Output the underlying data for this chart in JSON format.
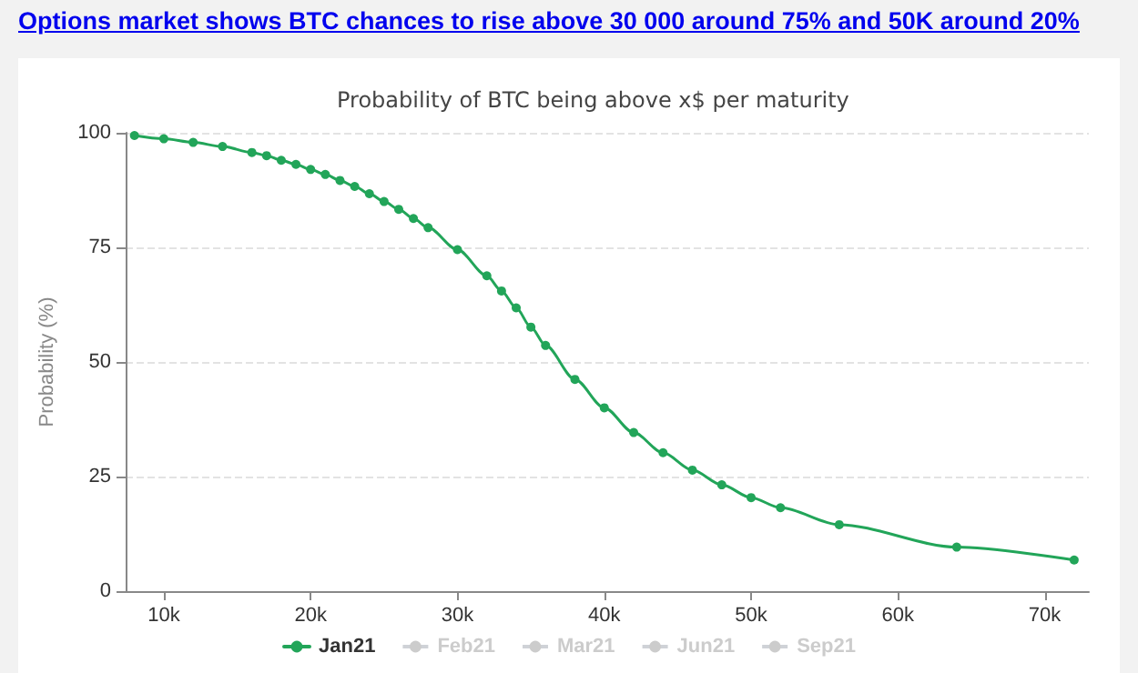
{
  "chart_data": {
    "type": "line",
    "title": "Probability of BTC being above x$ per maturity",
    "annotations": [
      "Options market shows BTC chances to rise above 30 000 around 75% and 50K around 20%"
    ],
    "ylabel": "Probability (%)",
    "x": [
      8000,
      10000,
      12000,
      14000,
      16000,
      17000,
      18000,
      19000,
      20000,
      21000,
      22000,
      23000,
      24000,
      25000,
      26000,
      27000,
      28000,
      30000,
      32000,
      33000,
      34000,
      35000,
      36000,
      38000,
      40000,
      42000,
      44000,
      46000,
      48000,
      50000,
      52000,
      56000,
      64000,
      72000
    ],
    "series": [
      {
        "name": "Jan21",
        "color": "#22a559",
        "values": [
          99.4,
          98.7,
          97.9,
          97.0,
          95.7,
          95.0,
          94.0,
          93.1,
          92.0,
          90.9,
          89.6,
          88.3,
          86.7,
          85.0,
          83.3,
          81.3,
          79.3,
          74.5,
          68.8,
          65.5,
          61.8,
          57.6,
          53.6,
          46.2,
          40.0,
          34.6,
          30.2,
          26.4,
          23.2,
          20.4,
          18.2,
          14.5,
          9.6,
          6.8
        ]
      },
      {
        "name": "Feb21",
        "color": "#cccccc",
        "values": [
          null,
          null,
          null,
          null,
          null,
          null,
          null,
          null,
          null,
          null,
          null,
          null,
          null,
          null,
          null,
          null,
          null,
          null,
          null,
          null,
          null,
          null,
          null,
          null,
          null,
          null,
          null,
          null,
          null,
          null,
          null,
          null,
          null,
          null
        ]
      },
      {
        "name": "Mar21",
        "color": "#cccccc",
        "values": [
          null,
          null,
          null,
          null,
          null,
          null,
          null,
          null,
          null,
          null,
          null,
          null,
          null,
          null,
          null,
          null,
          null,
          null,
          null,
          null,
          null,
          null,
          null,
          null,
          null,
          null,
          null,
          null,
          null,
          null,
          null,
          null,
          null,
          null
        ]
      },
      {
        "name": "Jun21",
        "color": "#cccccc",
        "values": [
          null,
          null,
          null,
          null,
          null,
          null,
          null,
          null,
          null,
          null,
          null,
          null,
          null,
          null,
          null,
          null,
          null,
          null,
          null,
          null,
          null,
          null,
          null,
          null,
          null,
          null,
          null,
          null,
          null,
          null,
          null,
          null,
          null,
          null
        ]
      },
      {
        "name": "Sep21",
        "color": "#cccccc",
        "values": [
          null,
          null,
          null,
          null,
          null,
          null,
          null,
          null,
          null,
          null,
          null,
          null,
          null,
          null,
          null,
          null,
          null,
          null,
          null,
          null,
          null,
          null,
          null,
          null,
          null,
          null,
          null,
          null,
          null,
          null,
          null,
          null,
          null,
          null
        ]
      }
    ],
    "xlim": [
      7400,
      73000
    ],
    "xticks": [
      {
        "value": 10000,
        "label": "10k"
      },
      {
        "value": 20000,
        "label": "20k"
      },
      {
        "value": 30000,
        "label": "30k"
      },
      {
        "value": 40000,
        "label": "40k"
      },
      {
        "value": 50000,
        "label": "50k"
      },
      {
        "value": 60000,
        "label": "60k"
      },
      {
        "value": 70000,
        "label": "70k"
      }
    ],
    "ylim": [
      0,
      100
    ],
    "yticks": [
      0,
      25,
      50,
      75,
      100
    ],
    "grid": "y",
    "legend": "bottom",
    "marker": "circle",
    "line_style": "solid"
  }
}
